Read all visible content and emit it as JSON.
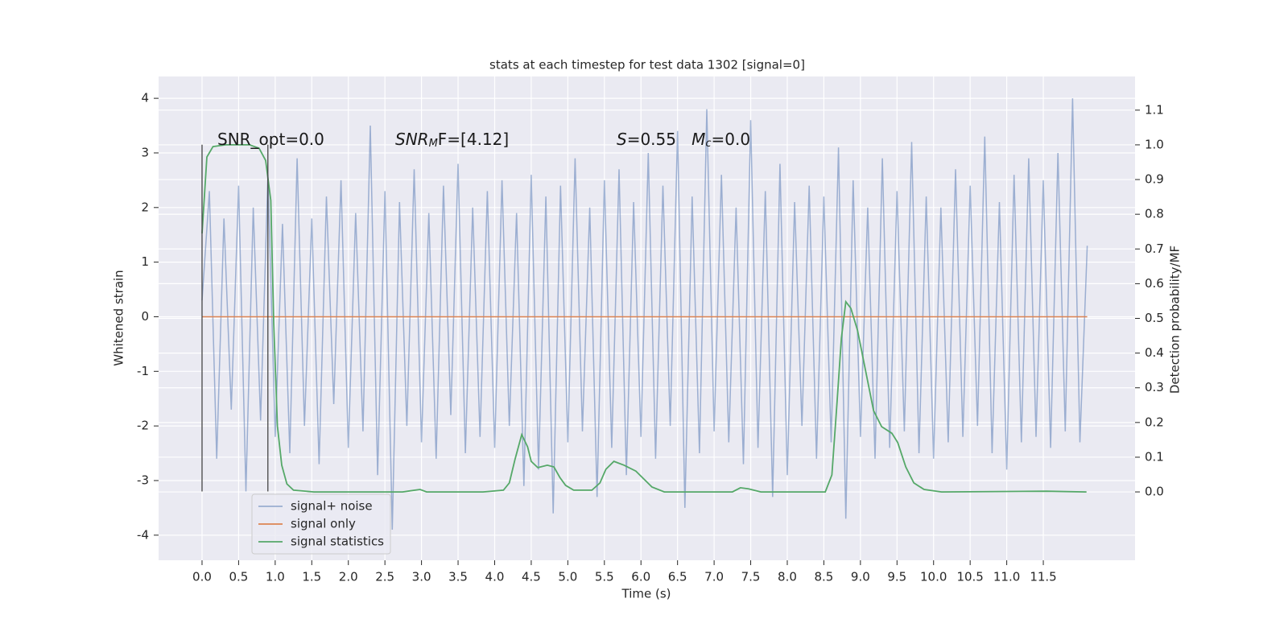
{
  "chart_data": {
    "type": "line",
    "title": "stats at each timestep for test data 1302 [signal=0]",
    "xlabel": "Time (s)",
    "ylabel": "Whitened strain",
    "y2label": "Detection probability/MF",
    "xlim": [
      -0.594,
      12.754
    ],
    "ylim": [
      -4.46,
      4.4
    ],
    "y2lim": [
      -0.197,
      1.197
    ],
    "xticks": [
      {
        "value": 0,
        "label": "0.0"
      },
      0.5,
      {
        "value": 1,
        "label": "1.0"
      },
      1.5,
      {
        "value": 2,
        "label": "2.0"
      },
      2.5,
      {
        "value": 3,
        "label": "3.0"
      },
      3.5,
      {
        "value": 4,
        "label": "4.0"
      },
      4.5,
      {
        "value": 5,
        "label": "5.0"
      },
      5.5,
      {
        "value": 6,
        "label": "6.0"
      },
      6.5,
      {
        "value": 7,
        "label": "7.0"
      },
      7.5,
      {
        "value": 8,
        "label": "8.0"
      },
      8.5,
      {
        "value": 9,
        "label": "9.0"
      },
      9.5,
      {
        "value": 10,
        "label": "10.0"
      },
      10.5,
      {
        "value": 11,
        "label": "11.0"
      },
      11.5
    ],
    "yticks": [
      -4,
      -3,
      -2,
      -1,
      0,
      1,
      2,
      3,
      4
    ],
    "y2ticks": [
      {
        "value": 0,
        "label": "0.0"
      },
      0.1,
      0.2,
      0.3,
      0.4,
      0.5,
      0.6,
      0.7,
      0.8,
      0.9,
      {
        "value": 1,
        "label": "1.0"
      },
      1.1
    ],
    "grid": true,
    "legend": "lower left",
    "annotations": [
      [
        "SNR_opt=0.0"
      ],
      [
        "SNR",
        "M",
        "F=[4.12]"
      ],
      [
        "S",
        "=0.55   ",
        "M",
        "c",
        "=0.0"
      ]
    ],
    "vlines": {
      "x": [
        0,
        0.9
      ],
      "ymin": -3.2,
      "ymax": 3.15,
      "color": "#444444"
    },
    "series": [
      {
        "name": "signal+ noise",
        "color": "#4c72b0",
        "alpha": 0.5,
        "axis": "y",
        "x": [
          0,
          0.1,
          0.2,
          0.3,
          0.4,
          0.5,
          0.6,
          0.7,
          0.8,
          0.9,
          1,
          1.1,
          1.2,
          1.3,
          1.4,
          1.5,
          1.6,
          1.7,
          1.8,
          1.9,
          2,
          2.1,
          2.2,
          2.3,
          2.4,
          2.5,
          2.6,
          2.7,
          2.8,
          2.9,
          3,
          3.1,
          3.2,
          3.3,
          3.4,
          3.5,
          3.6,
          3.7,
          3.8,
          3.9,
          4,
          4.1,
          4.2,
          4.3,
          4.4,
          4.5,
          4.6,
          4.7,
          4.8,
          4.9,
          5,
          5.1,
          5.2,
          5.3,
          5.4,
          5.5,
          5.6,
          5.7,
          5.8,
          5.9,
          6,
          6.1,
          6.2,
          6.3,
          6.4,
          6.5,
          6.6,
          6.7,
          6.8,
          6.9,
          7,
          7.1,
          7.2,
          7.3,
          7.4,
          7.5,
          7.6,
          7.7,
          7.8,
          7.9,
          8,
          8.1,
          8.2,
          8.3,
          8.4,
          8.5,
          8.6,
          8.7,
          8.8,
          8.9,
          9,
          9.1,
          9.2,
          9.3,
          9.4,
          9.5,
          9.6,
          9.7,
          9.8,
          9.9,
          10,
          10.1,
          10.2,
          10.3,
          10.4,
          10.5,
          10.6,
          10.7,
          10.8,
          10.9,
          11,
          11.1,
          11.2,
          11.3,
          11.4,
          11.5,
          11.6,
          11.7,
          11.8,
          11.9,
          12,
          12.1
        ],
        "values": [
          0.3,
          2.3,
          -2.6,
          1.8,
          -1.7,
          2.4,
          -3.2,
          2.0,
          -1.9,
          2.6,
          -2.2,
          1.7,
          -2.5,
          2.9,
          -2.0,
          1.8,
          -2.7,
          2.2,
          -1.6,
          2.5,
          -2.4,
          1.9,
          -2.1,
          3.5,
          -2.9,
          2.3,
          -3.9,
          2.1,
          -2.0,
          2.7,
          -2.3,
          1.9,
          -2.6,
          2.4,
          -1.8,
          2.8,
          -2.5,
          2.0,
          -2.2,
          2.3,
          -2.4,
          2.5,
          -2.0,
          1.9,
          -3.1,
          2.6,
          -2.8,
          2.2,
          -3.6,
          2.4,
          -2.3,
          2.9,
          -2.1,
          2.0,
          -3.3,
          2.5,
          -2.4,
          2.7,
          -2.9,
          2.1,
          -2.2,
          3.0,
          -2.6,
          2.4,
          -2.0,
          3.4,
          -3.5,
          2.2,
          -2.5,
          3.8,
          -2.1,
          2.6,
          -2.3,
          2.0,
          -2.7,
          3.6,
          -2.4,
          2.3,
          -3.3,
          2.8,
          -2.9,
          2.1,
          -2.0,
          2.4,
          -2.6,
          2.2,
          -2.3,
          3.1,
          -3.7,
          2.5,
          -2.2,
          2.0,
          -2.6,
          2.9,
          -2.4,
          2.3,
          -2.1,
          3.2,
          -2.5,
          2.2,
          -2.6,
          2.0,
          -2.3,
          2.7,
          -2.2,
          2.4,
          -2.0,
          3.3,
          -2.5,
          2.1,
          -2.8,
          2.6,
          -2.3,
          2.9,
          -2.2,
          2.5,
          -2.4,
          3.0,
          -2.1,
          4.0,
          -2.3,
          1.3
        ]
      },
      {
        "name": "signal only",
        "color": "#dd8452",
        "alpha": 1,
        "axis": "y",
        "x": [
          0,
          12.1
        ],
        "values": [
          0,
          0
        ]
      },
      {
        "name": "signal statistics",
        "color": "#55a868",
        "alpha": 1,
        "axis": "y2",
        "x": [
          0,
          0.066,
          0.15,
          0.32,
          0.65,
          0.78,
          0.87,
          0.94,
          0.98,
          1.03,
          1.09,
          1.16,
          1.25,
          1.53,
          2.74,
          2.98,
          3.07,
          3.84,
          4.12,
          4.2,
          4.28,
          4.37,
          4.45,
          4.5,
          4.59,
          4.72,
          4.81,
          4.89,
          4.97,
          5.08,
          5.33,
          5.44,
          5.52,
          5.63,
          5.77,
          5.93,
          6.04,
          6.15,
          6.32,
          7.25,
          7.36,
          7.47,
          7.64,
          8.52,
          8.61,
          8.68,
          8.74,
          8.8,
          8.87,
          8.96,
          9.07,
          9.18,
          9.29,
          9.43,
          9.51,
          9.62,
          9.73,
          9.87,
          10.11,
          11.54,
          12.09
        ],
        "values": [
          0.745,
          0.965,
          0.995,
          1.0,
          1.0,
          0.99,
          0.955,
          0.84,
          0.49,
          0.19,
          0.077,
          0.023,
          0.005,
          0,
          0,
          0.007,
          0,
          0,
          0.005,
          0.026,
          0.095,
          0.165,
          0.13,
          0.088,
          0.07,
          0.077,
          0.072,
          0.042,
          0.019,
          0.005,
          0.005,
          0.026,
          0.065,
          0.088,
          0.077,
          0.06,
          0.037,
          0.014,
          0,
          0,
          0.012,
          0.009,
          0,
          0,
          0.049,
          0.258,
          0.443,
          0.548,
          0.529,
          0.466,
          0.35,
          0.234,
          0.188,
          0.169,
          0.142,
          0.072,
          0.026,
          0.007,
          0,
          0.002,
          0
        ]
      }
    ]
  }
}
